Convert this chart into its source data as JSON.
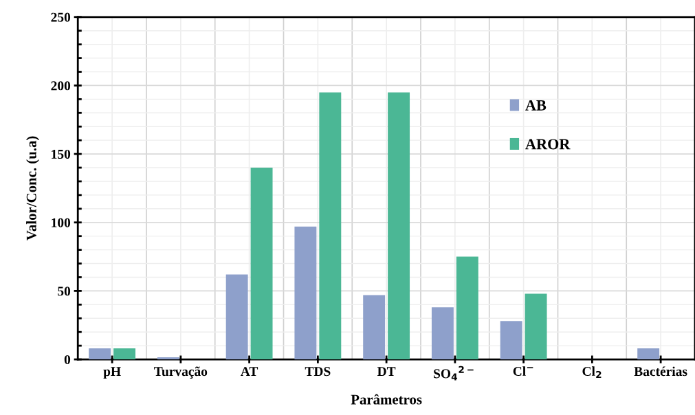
{
  "chart_data": {
    "type": "bar",
    "xlabel": "Parâmetros",
    "ylabel": "Valor/Conc. (u.a)",
    "categories": [
      "pH",
      "Turvação",
      "AT",
      "TDS",
      "DT",
      "SO$_{4}$$^{2−}$",
      "Cl$^{−}$",
      "Cl$_{2}$",
      "Bactérias"
    ],
    "series": [
      {
        "name": "AB",
        "color": "#8ea0cb",
        "values": [
          8,
          1.5,
          62,
          97,
          47,
          38,
          28,
          0,
          8
        ]
      },
      {
        "name": "AROR",
        "color": "#4bb795",
        "values": [
          8,
          0,
          140,
          195,
          195,
          75,
          48,
          0,
          0
        ]
      }
    ],
    "ylim": [
      0,
      250
    ],
    "yticks": [
      0,
      {
        "value": 10,
        "label": null
      },
      {
        "value": 20,
        "label": null
      },
      {
        "value": 30,
        "label": null
      },
      {
        "value": 40,
        "label": null
      },
      50,
      {
        "value": 60,
        "label": null
      },
      {
        "value": 70,
        "label": null
      },
      {
        "value": 80,
        "label": null
      },
      {
        "value": 90,
        "label": null
      },
      100,
      {
        "value": 110,
        "label": null
      },
      {
        "value": 120,
        "label": null
      },
      {
        "value": 130,
        "label": null
      },
      {
        "value": 140,
        "label": null
      },
      150,
      {
        "value": 160,
        "label": null
      },
      {
        "value": 170,
        "label": null
      },
      {
        "value": 180,
        "label": null
      },
      {
        "value": 190,
        "label": null
      },
      200,
      {
        "value": 210,
        "label": null
      },
      {
        "value": 220,
        "label": null
      },
      {
        "value": 230,
        "label": null
      },
      {
        "value": 240,
        "label": null
      },
      250
    ],
    "grid": true,
    "legend": "top right"
  }
}
